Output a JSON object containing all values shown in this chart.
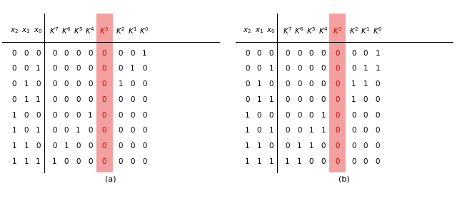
{
  "table_a": {
    "rows": [
      [
        0,
        0,
        0,
        0,
        0,
        0,
        0,
        0,
        0,
        0,
        1
      ],
      [
        0,
        0,
        1,
        0,
        0,
        0,
        0,
        0,
        0,
        1,
        0
      ],
      [
        0,
        1,
        0,
        0,
        0,
        0,
        0,
        0,
        1,
        0,
        0
      ],
      [
        0,
        1,
        1,
        0,
        0,
        0,
        0,
        0,
        0,
        0,
        0
      ],
      [
        1,
        0,
        0,
        0,
        0,
        0,
        1,
        0,
        0,
        0,
        0
      ],
      [
        1,
        0,
        1,
        0,
        0,
        1,
        0,
        0,
        0,
        0,
        0
      ],
      [
        1,
        1,
        0,
        0,
        1,
        0,
        0,
        0,
        0,
        0,
        0
      ],
      [
        1,
        1,
        1,
        1,
        0,
        0,
        0,
        0,
        0,
        0,
        0
      ]
    ],
    "label": "(a)"
  },
  "table_b": {
    "rows": [
      [
        0,
        0,
        0,
        0,
        0,
        0,
        0,
        0,
        0,
        0,
        1
      ],
      [
        0,
        0,
        1,
        0,
        0,
        0,
        0,
        0,
        0,
        1,
        1
      ],
      [
        0,
        1,
        0,
        0,
        0,
        0,
        0,
        0,
        1,
        1,
        0
      ],
      [
        0,
        1,
        1,
        0,
        0,
        0,
        0,
        0,
        1,
        0,
        0
      ],
      [
        1,
        0,
        0,
        0,
        0,
        0,
        1,
        0,
        0,
        0,
        0
      ],
      [
        1,
        0,
        1,
        0,
        0,
        1,
        1,
        0,
        0,
        0,
        0
      ],
      [
        1,
        1,
        0,
        0,
        1,
        1,
        0,
        0,
        0,
        0,
        0
      ],
      [
        1,
        1,
        1,
        1,
        1,
        0,
        0,
        0,
        0,
        0,
        0
      ]
    ],
    "label": "(b)"
  },
  "header_labels": [
    "$x_2$",
    "$x_1$",
    "$x_0$",
    "$K^7$",
    "$K^6$",
    "$K^5$",
    "$K^4$",
    "$K^3$",
    "$K^2$",
    "$K^1$",
    "$K^0$"
  ],
  "highlight_col": 7,
  "highlight_color": "#f5a0a0",
  "background": "#ffffff",
  "text_color": "#000000",
  "highlight_text_color": "#cc0000",
  "fig_width": 6.4,
  "fig_height": 2.78,
  "dpi": 100
}
